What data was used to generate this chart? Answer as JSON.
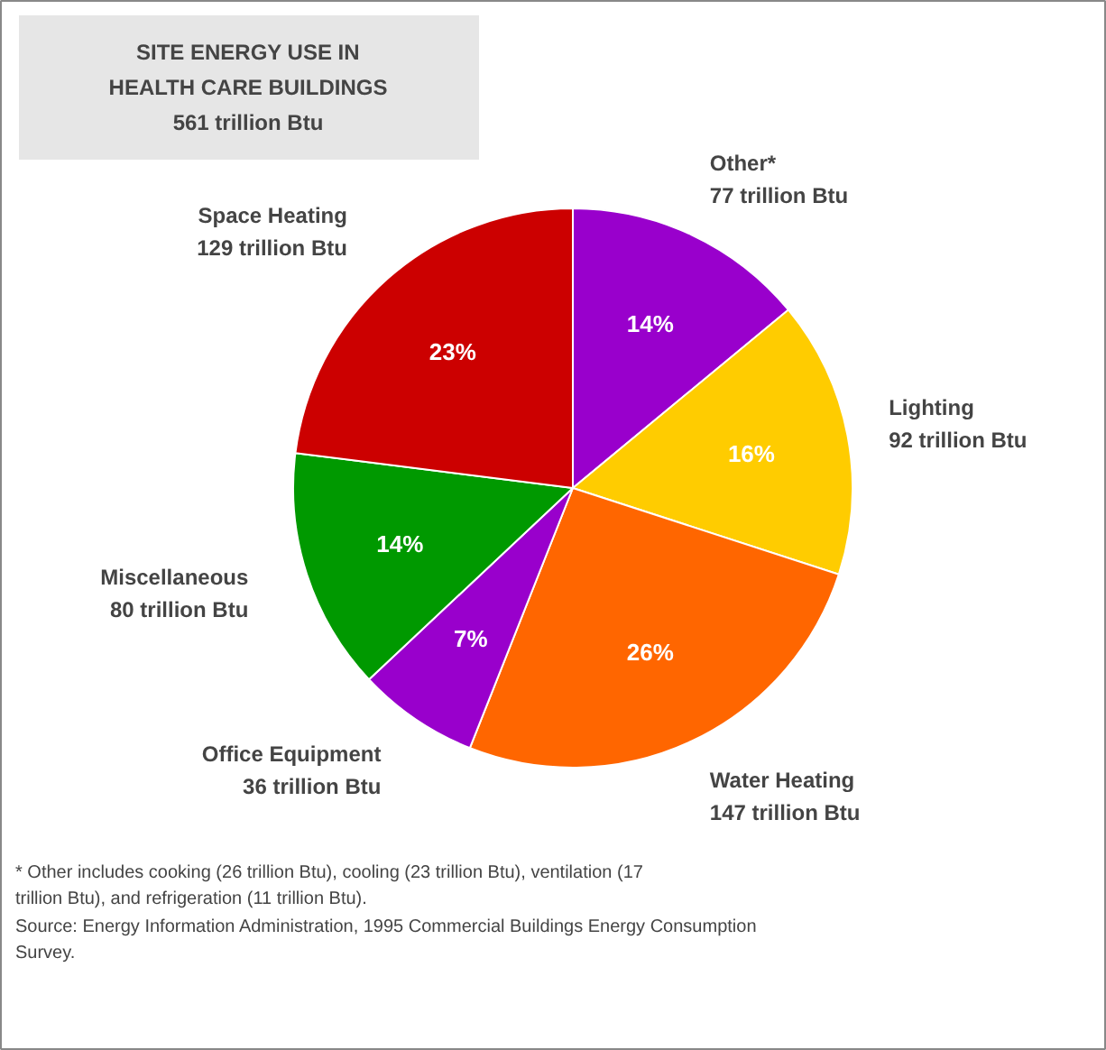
{
  "chart_data": {
    "type": "pie",
    "title": "SITE ENERGY USE IN\nHEALTH CARE BUILDINGS\n561 trillion Btu",
    "categories": [
      "Other*\n77 trillion Btu",
      "Lighting\n92 trillion Btu",
      "Water Heating\n147 trillion Btu",
      "Office Equipment\n36 trillion Btu",
      "Miscellaneous\n80 trillion Btu",
      "Space Heating\n129 trillion Btu"
    ],
    "values": [
      14,
      16,
      26,
      7,
      14,
      23
    ],
    "colors": [
      "#9900cc",
      "#ffcc00",
      "#ff6600",
      "#9900cc",
      "#009900",
      "#cc0000"
    ],
    "value_labels": [
      "14%",
      "16%",
      "26%",
      "7%",
      "14%",
      "23%"
    ],
    "annotations": [
      "* Other includes cooking (26 trillion Btu), cooling (23 trillion Btu), ventilation (17 trillion Btu), and refrigeration (11 trillion Btu).",
      "Source:  Energy Information Administration, 1995 Commercial Buildings Energy Consumption Survey."
    ]
  }
}
